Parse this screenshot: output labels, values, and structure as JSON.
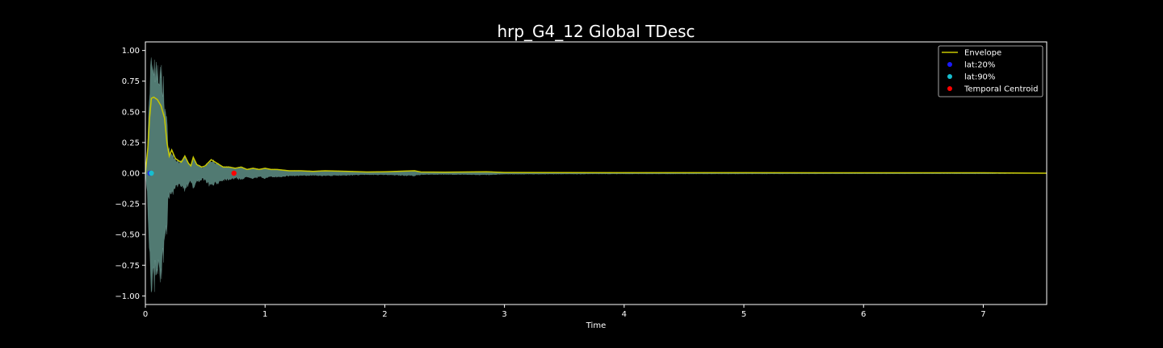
{
  "chart_data": {
    "type": "line",
    "title": "hrp_G4_12 Global TDesc",
    "xlabel": "Time",
    "ylabel": "",
    "xlim": [
      0,
      7.53
    ],
    "ylim": [
      -1.07,
      1.07
    ],
    "x_ticks": [
      "0",
      "1",
      "2",
      "3",
      "4",
      "5",
      "6",
      "7"
    ],
    "x_tick_values": [
      0,
      1,
      2,
      3,
      4,
      5,
      6,
      7
    ],
    "y_ticks": [
      "1.00",
      "0.75",
      "0.50",
      "0.25",
      "0.00",
      "−0.25",
      "−0.50",
      "−0.75",
      "−1.00"
    ],
    "y_tick_values": [
      1.0,
      0.75,
      0.5,
      0.25,
      0.0,
      -0.25,
      -0.5,
      -0.75,
      -1.0
    ],
    "grid": false,
    "legend_position": "top-right",
    "colors": {
      "background": "#000000",
      "axes": "#ffffff",
      "waveform": "#5f8f86",
      "envelope": "#c8c800",
      "lat20": "#1a1aff",
      "lat90": "#17becf",
      "centroid": "#ff0000"
    },
    "series": [
      {
        "name": "Envelope",
        "kind": "line",
        "x": [
          0,
          0.02,
          0.035,
          0.05,
          0.07,
          0.1,
          0.13,
          0.16,
          0.18,
          0.2,
          0.22,
          0.25,
          0.28,
          0.3,
          0.33,
          0.36,
          0.38,
          0.4,
          0.43,
          0.47,
          0.5,
          0.55,
          0.6,
          0.65,
          0.7,
          0.75,
          0.8,
          0.85,
          0.9,
          0.95,
          1.0,
          1.05,
          1.1,
          1.2,
          1.3,
          1.4,
          1.5,
          1.7,
          1.85,
          2.0,
          2.25,
          2.3,
          2.5,
          2.85,
          3.0,
          3.5,
          4.0,
          5.0,
          6.0,
          7.0,
          7.53
        ],
        "y": [
          0.0,
          0.2,
          0.45,
          0.61,
          0.62,
          0.6,
          0.55,
          0.45,
          0.25,
          0.14,
          0.19,
          0.12,
          0.1,
          0.09,
          0.14,
          0.08,
          0.06,
          0.13,
          0.07,
          0.05,
          0.06,
          0.11,
          0.08,
          0.05,
          0.05,
          0.04,
          0.05,
          0.03,
          0.04,
          0.03,
          0.04,
          0.03,
          0.03,
          0.02,
          0.02,
          0.015,
          0.02,
          0.015,
          0.01,
          0.012,
          0.02,
          0.01,
          0.008,
          0.012,
          0.006,
          0.005,
          0.004,
          0.004,
          0.003,
          0.003,
          0.0
        ]
      },
      {
        "name": "lat:20%",
        "kind": "marker",
        "x": [
          0.04
        ],
        "y": [
          0.0
        ]
      },
      {
        "name": "lat:90%",
        "kind": "marker",
        "x": [
          0.05
        ],
        "y": [
          0.0
        ]
      },
      {
        "name": "Temporal Centroid",
        "kind": "marker",
        "x": [
          0.74
        ],
        "y": [
          0.0
        ]
      }
    ],
    "legend": [
      "Envelope",
      "lat:20%",
      "lat:90%",
      "Temporal Centroid"
    ]
  }
}
